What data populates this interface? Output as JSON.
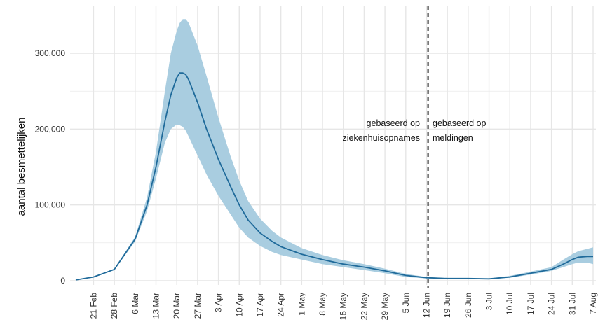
{
  "chart_data": {
    "type": "line",
    "title": "",
    "xlabel": "",
    "ylabel": "aantal besmettelijken",
    "ylim": [
      0,
      350000
    ],
    "grid": true,
    "legend": "none",
    "colors": {
      "line": "#1f6a9a",
      "band": "#a9cde0",
      "divider": "#222222",
      "grid": "#e6e6e6"
    },
    "y_ticks": [
      {
        "value": 0,
        "label": "0"
      },
      {
        "value": 100000,
        "label": "100,000"
      },
      {
        "value": 200000,
        "label": "200,000"
      },
      {
        "value": 300000,
        "label": "300,000"
      }
    ],
    "x_ticks": [
      {
        "day": 6,
        "label": "21 Feb"
      },
      {
        "day": 13,
        "label": "28 Feb"
      },
      {
        "day": 20,
        "label": "6 Mar"
      },
      {
        "day": 27,
        "label": "13 Mar"
      },
      {
        "day": 34,
        "label": "20 Mar"
      },
      {
        "day": 41,
        "label": "27 Mar"
      },
      {
        "day": 48,
        "label": "3 Apr"
      },
      {
        "day": 55,
        "label": "10 Apr"
      },
      {
        "day": 62,
        "label": "17 Apr"
      },
      {
        "day": 69,
        "label": "24 Apr"
      },
      {
        "day": 76,
        "label": "1 May"
      },
      {
        "day": 83,
        "label": "8 May"
      },
      {
        "day": 90,
        "label": "15 May"
      },
      {
        "day": 97,
        "label": "22 May"
      },
      {
        "day": 104,
        "label": "29 May"
      },
      {
        "day": 111,
        "label": "5 Jun"
      },
      {
        "day": 118,
        "label": "12 Jun"
      },
      {
        "day": 125,
        "label": "19 Jun"
      },
      {
        "day": 132,
        "label": "26 Jun"
      },
      {
        "day": 139,
        "label": "3 Jul"
      },
      {
        "day": 146,
        "label": "10 Jul"
      },
      {
        "day": 153,
        "label": "17 Jul"
      },
      {
        "day": 160,
        "label": "24 Jul"
      },
      {
        "day": 167,
        "label": "31 Jul"
      },
      {
        "day": 174,
        "label": "7 Aug"
      }
    ],
    "x_range": [
      0,
      174
    ],
    "series": [
      {
        "x": [
          0,
          6,
          13,
          20,
          24,
          27,
          30,
          32,
          34,
          35,
          36,
          37,
          38,
          41,
          44,
          48,
          52,
          55,
          58,
          62,
          66,
          69,
          76,
          83,
          90,
          97,
          104,
          111,
          118,
          125,
          132,
          139,
          146,
          153,
          160,
          164,
          167,
          169,
          172,
          174
        ],
        "y": [
          1000,
          5000,
          15000,
          55000,
          100000,
          150000,
          210000,
          245000,
          268000,
          274000,
          274000,
          272000,
          265000,
          235000,
          200000,
          160000,
          125000,
          100000,
          80000,
          63000,
          52000,
          45000,
          35000,
          28000,
          22000,
          18000,
          13000,
          7000,
          4000,
          3000,
          3000,
          2500,
          5000,
          10000,
          15000,
          22000,
          28000,
          31000,
          32000,
          32000
        ],
        "lower": [
          1000,
          5000,
          14000,
          52000,
          92000,
          135000,
          182000,
          200000,
          206000,
          205000,
          203000,
          198000,
          190000,
          165000,
          140000,
          112000,
          88000,
          70000,
          57000,
          46000,
          38000,
          34000,
          28000,
          22000,
          18000,
          14000,
          10000,
          5000,
          3000,
          2500,
          2500,
          2000,
          4000,
          8000,
          13000,
          18000,
          22000,
          24000,
          24000,
          22000
        ],
        "upper": [
          1000,
          5000,
          16000,
          58000,
          110000,
          170000,
          250000,
          300000,
          330000,
          340000,
          345000,
          345000,
          340000,
          310000,
          270000,
          215000,
          165000,
          132000,
          105000,
          82000,
          66000,
          57000,
          43000,
          34000,
          27000,
          22000,
          16000,
          9000,
          5000,
          3500,
          3500,
          3000,
          6500,
          12000,
          18000,
          28000,
          35000,
          39000,
          42000,
          44000
        ]
      }
    ],
    "divider": {
      "day": 118.5
    },
    "annotations": {
      "left_line1": "gebaseerd op",
      "left_line2": "ziekenhuisopnames",
      "right_line1": "gebaseerd op",
      "right_line2": "meldingen"
    }
  }
}
